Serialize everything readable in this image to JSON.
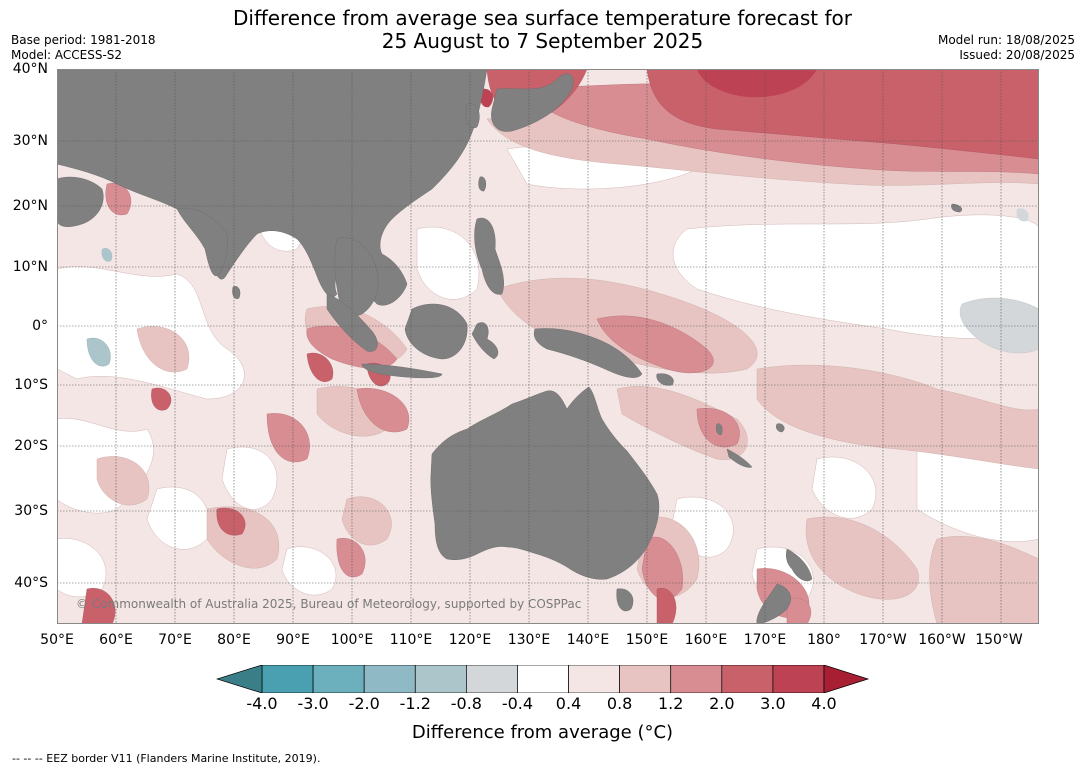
{
  "title": {
    "line1": "Difference from average sea surface temperature forecast for",
    "line2": "25 August to 7 September 2025"
  },
  "meta_left": {
    "base_period": "Base period: 1981-2018",
    "model": "Model: ACCESS-S2"
  },
  "meta_right": {
    "model_run": "Model run: 18/08/2025",
    "issued": "Issued: 20/08/2025"
  },
  "lat_labels": [
    "40°N",
    "30°N",
    "20°N",
    "10°N",
    "0°",
    "10°S",
    "20°S",
    "30°S",
    "40°S"
  ],
  "lon_labels": [
    "50°E",
    "60°E",
    "70°E",
    "80°E",
    "90°E",
    "100°E",
    "110°E",
    "120°E",
    "130°E",
    "140°E",
    "150°E",
    "160°E",
    "170°E",
    "180°",
    "170°W",
    "160°W",
    "150°W"
  ],
  "copyright": "© Commonwealth of Australia 2025, Bureau of Meteorology, supported by COSPPac",
  "colorbar": {
    "ticks": [
      "-4.0",
      "-3.0",
      "-2.0",
      "-1.2",
      "-0.8",
      "-0.4",
      "0.4",
      "0.8",
      "1.2",
      "2.0",
      "3.0",
      "4.0"
    ],
    "colors": [
      "#3a7f88",
      "#4aa0b1",
      "#6cafbd",
      "#8fbac5",
      "#abc5ca",
      "#d3d7d9",
      "#ffffff",
      "#f3e6e5",
      "#e7c4c1",
      "#d78d92",
      "#c9616b",
      "#bd4253",
      "#a81f34"
    ],
    "label": "Difference from average (°C)"
  },
  "footer": "--  --  -- EEZ border V11 (Flanders Marine Institute, 2019)."
}
